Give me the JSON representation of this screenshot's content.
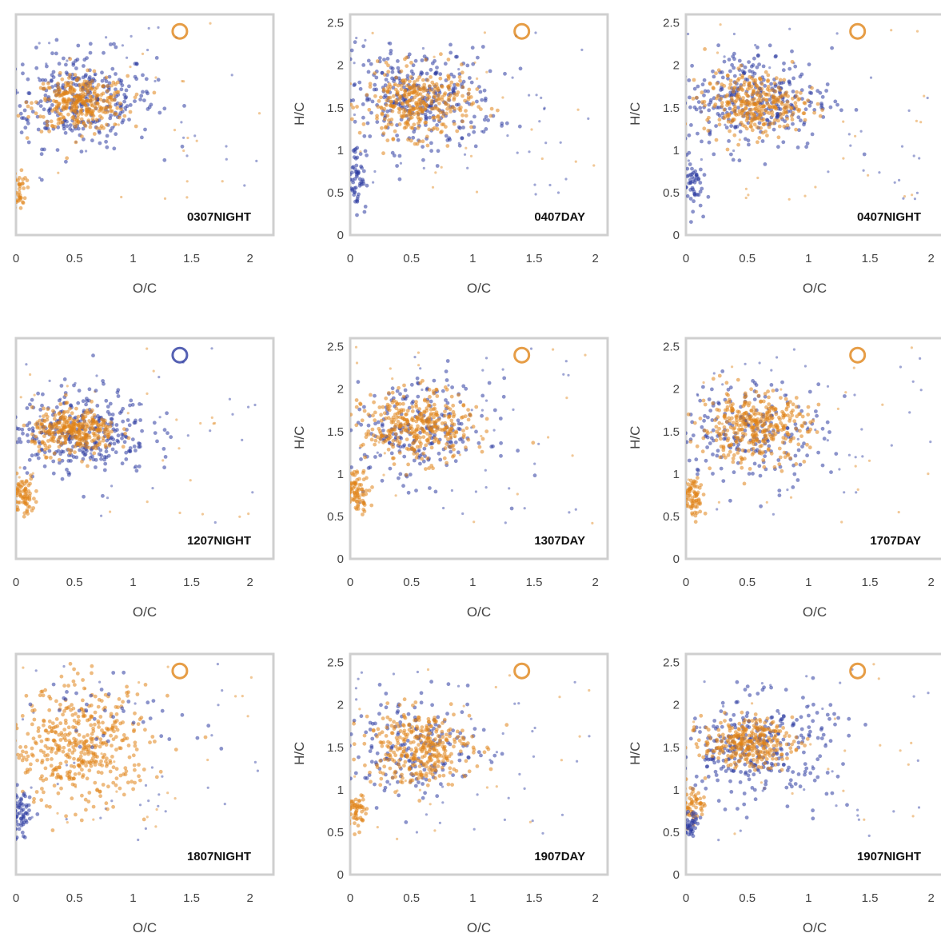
{
  "figure": {
    "colors": {
      "blue": "#2b3aa0",
      "orange": "#e08418",
      "frame": "#cfcfcf",
      "text": "#444444"
    }
  },
  "chart_data": [
    {
      "type": "scatter",
      "panel_label": "0307NIGHT",
      "xlabel": "O/C",
      "ylabel": "",
      "xlim": [
        0,
        2.2
      ],
      "ylim": [
        0,
        2.6
      ],
      "x_ticks": [
        "0",
        "0.5",
        "1",
        "1.5",
        "2"
      ],
      "y_ticks": [],
      "clusters": [
        {
          "color": "blue",
          "cx": 0.55,
          "cy": 1.6,
          "sx": 0.32,
          "sy": 0.28,
          "n": 320
        },
        {
          "color": "orange",
          "cx": 0.55,
          "cy": 1.55,
          "sx": 0.2,
          "sy": 0.16,
          "n": 320
        },
        {
          "color": "orange",
          "cx": 0.03,
          "cy": 0.55,
          "sx": 0.03,
          "sy": 0.12,
          "n": 40
        }
      ],
      "rings": [
        {
          "color": "orange",
          "x": 1.4,
          "y": 2.4
        }
      ]
    },
    {
      "type": "scatter",
      "panel_label": "0407DAY",
      "xlabel": "O/C",
      "ylabel": "H/C",
      "xlim": [
        0,
        2.1
      ],
      "ylim": [
        0,
        2.6
      ],
      "x_ticks": [
        "0",
        "0.5",
        "1",
        "1.5",
        "2"
      ],
      "y_ticks": [
        "0",
        "0.5",
        "1",
        "1.5",
        "2",
        "2.5"
      ],
      "clusters": [
        {
          "color": "blue",
          "cx": 0.55,
          "cy": 1.6,
          "sx": 0.32,
          "sy": 0.3,
          "n": 320
        },
        {
          "color": "orange",
          "cx": 0.55,
          "cy": 1.55,
          "sx": 0.22,
          "sy": 0.2,
          "n": 340
        },
        {
          "color": "blue",
          "cx": 0.05,
          "cy": 0.7,
          "sx": 0.04,
          "sy": 0.2,
          "n": 60
        }
      ],
      "rings": [
        {
          "color": "orange",
          "x": 1.4,
          "y": 2.4
        }
      ]
    },
    {
      "type": "scatter",
      "panel_label": "0407NIGHT",
      "xlabel": "O/C",
      "ylabel": "H/C",
      "xlim": [
        0,
        2.1
      ],
      "ylim": [
        0,
        2.6
      ],
      "x_ticks": [
        "0",
        "0.5",
        "1",
        "1.5",
        "2"
      ],
      "y_ticks": [
        "0",
        "0.5",
        "1",
        "1.5",
        "2",
        "2.5"
      ],
      "clusters": [
        {
          "color": "blue",
          "cx": 0.55,
          "cy": 1.6,
          "sx": 0.32,
          "sy": 0.3,
          "n": 320
        },
        {
          "color": "orange",
          "cx": 0.55,
          "cy": 1.55,
          "sx": 0.2,
          "sy": 0.18,
          "n": 320
        },
        {
          "color": "blue",
          "cx": 0.05,
          "cy": 0.6,
          "sx": 0.04,
          "sy": 0.15,
          "n": 50
        }
      ],
      "rings": [
        {
          "color": "orange",
          "x": 1.4,
          "y": 2.4
        }
      ]
    },
    {
      "type": "scatter",
      "panel_label": "1207NIGHT",
      "xlabel": "O/C",
      "ylabel": "",
      "xlim": [
        0,
        2.2
      ],
      "ylim": [
        0,
        2.6
      ],
      "x_ticks": [
        "0",
        "0.5",
        "1",
        "1.5",
        "2"
      ],
      "y_ticks": [],
      "clusters": [
        {
          "color": "blue",
          "cx": 0.55,
          "cy": 1.5,
          "sx": 0.3,
          "sy": 0.25,
          "n": 320
        },
        {
          "color": "orange",
          "cx": 0.5,
          "cy": 1.5,
          "sx": 0.18,
          "sy": 0.13,
          "n": 320
        },
        {
          "color": "orange",
          "cx": 0.06,
          "cy": 0.75,
          "sx": 0.05,
          "sy": 0.12,
          "n": 80
        }
      ],
      "rings": [
        {
          "color": "blue",
          "x": 1.4,
          "y": 2.4
        }
      ]
    },
    {
      "type": "scatter",
      "panel_label": "1307DAY",
      "xlabel": "O/C",
      "ylabel": "H/C",
      "xlim": [
        0,
        2.1
      ],
      "ylim": [
        0,
        2.6
      ],
      "x_ticks": [
        "0",
        "0.5",
        "1",
        "1.5",
        "2"
      ],
      "y_ticks": [
        "0",
        "0.5",
        "1",
        "1.5",
        "2",
        "2.5"
      ],
      "clusters": [
        {
          "color": "blue",
          "cx": 0.55,
          "cy": 1.5,
          "sx": 0.3,
          "sy": 0.3,
          "n": 220
        },
        {
          "color": "orange",
          "cx": 0.55,
          "cy": 1.55,
          "sx": 0.22,
          "sy": 0.2,
          "n": 360
        },
        {
          "color": "orange",
          "cx": 0.06,
          "cy": 0.8,
          "sx": 0.05,
          "sy": 0.12,
          "n": 80
        }
      ],
      "rings": [
        {
          "color": "orange",
          "x": 1.4,
          "y": 2.4
        }
      ]
    },
    {
      "type": "scatter",
      "panel_label": "1707DAY",
      "xlabel": "O/C",
      "ylabel": "H/C",
      "xlim": [
        0,
        2.1
      ],
      "ylim": [
        0,
        2.6
      ],
      "x_ticks": [
        "0",
        "0.5",
        "1",
        "1.5",
        "2"
      ],
      "y_ticks": [
        "0",
        "0.5",
        "1",
        "1.5",
        "2",
        "2.5"
      ],
      "clusters": [
        {
          "color": "blue",
          "cx": 0.55,
          "cy": 1.5,
          "sx": 0.3,
          "sy": 0.3,
          "n": 200
        },
        {
          "color": "orange",
          "cx": 0.55,
          "cy": 1.55,
          "sx": 0.22,
          "sy": 0.2,
          "n": 360
        },
        {
          "color": "orange",
          "cx": 0.06,
          "cy": 0.75,
          "sx": 0.05,
          "sy": 0.12,
          "n": 80
        }
      ],
      "rings": [
        {
          "color": "orange",
          "x": 1.4,
          "y": 2.4
        }
      ]
    },
    {
      "type": "scatter",
      "panel_label": "1807NIGHT",
      "xlabel": "O/C",
      "ylabel": "",
      "xlim": [
        0,
        2.2
      ],
      "ylim": [
        0,
        2.6
      ],
      "x_ticks": [
        "0",
        "0.5",
        "1",
        "1.5",
        "2"
      ],
      "y_ticks": [],
      "clusters": [
        {
          "color": "orange",
          "cx": 0.55,
          "cy": 1.5,
          "sx": 0.3,
          "sy": 0.35,
          "n": 460
        },
        {
          "color": "blue",
          "cx": 0.04,
          "cy": 0.7,
          "sx": 0.04,
          "sy": 0.15,
          "n": 60
        },
        {
          "color": "blue",
          "cx": 0.8,
          "cy": 1.9,
          "sx": 0.4,
          "sy": 0.2,
          "n": 40
        }
      ],
      "rings": [
        {
          "color": "orange",
          "x": 1.4,
          "y": 2.4
        }
      ]
    },
    {
      "type": "scatter",
      "panel_label": "1907DAY",
      "xlabel": "O/C",
      "ylabel": "H/C",
      "xlim": [
        0,
        2.1
      ],
      "ylim": [
        0,
        2.6
      ],
      "x_ticks": [
        "0",
        "0.5",
        "1",
        "1.5",
        "2"
      ],
      "y_ticks": [
        "0",
        "0.5",
        "1",
        "1.5",
        "2",
        "2.5"
      ],
      "clusters": [
        {
          "color": "blue",
          "cx": 0.55,
          "cy": 1.5,
          "sx": 0.28,
          "sy": 0.3,
          "n": 180
        },
        {
          "color": "orange",
          "cx": 0.55,
          "cy": 1.5,
          "sx": 0.22,
          "sy": 0.22,
          "n": 340
        },
        {
          "color": "orange",
          "cx": 0.05,
          "cy": 0.75,
          "sx": 0.04,
          "sy": 0.1,
          "n": 60
        }
      ],
      "rings": [
        {
          "color": "orange",
          "x": 1.4,
          "y": 2.4
        }
      ]
    },
    {
      "type": "scatter",
      "panel_label": "1907NIGHT",
      "xlabel": "O/C",
      "ylabel": "H/C",
      "xlim": [
        0,
        2.1
      ],
      "ylim": [
        0,
        2.6
      ],
      "x_ticks": [
        "0",
        "0.5",
        "1",
        "1.5",
        "2"
      ],
      "y_ticks": [
        "0",
        "0.5",
        "1",
        "1.5",
        "2",
        "2.5"
      ],
      "clusters": [
        {
          "color": "blue",
          "cx": 0.55,
          "cy": 1.5,
          "sx": 0.33,
          "sy": 0.3,
          "n": 320
        },
        {
          "color": "orange",
          "cx": 0.5,
          "cy": 1.55,
          "sx": 0.18,
          "sy": 0.14,
          "n": 300
        },
        {
          "color": "orange",
          "cx": 0.06,
          "cy": 0.85,
          "sx": 0.05,
          "sy": 0.12,
          "n": 60
        },
        {
          "color": "blue",
          "cx": 0.04,
          "cy": 0.6,
          "sx": 0.03,
          "sy": 0.08,
          "n": 40
        }
      ],
      "rings": [
        {
          "color": "orange",
          "x": 1.4,
          "y": 2.4
        }
      ]
    }
  ]
}
